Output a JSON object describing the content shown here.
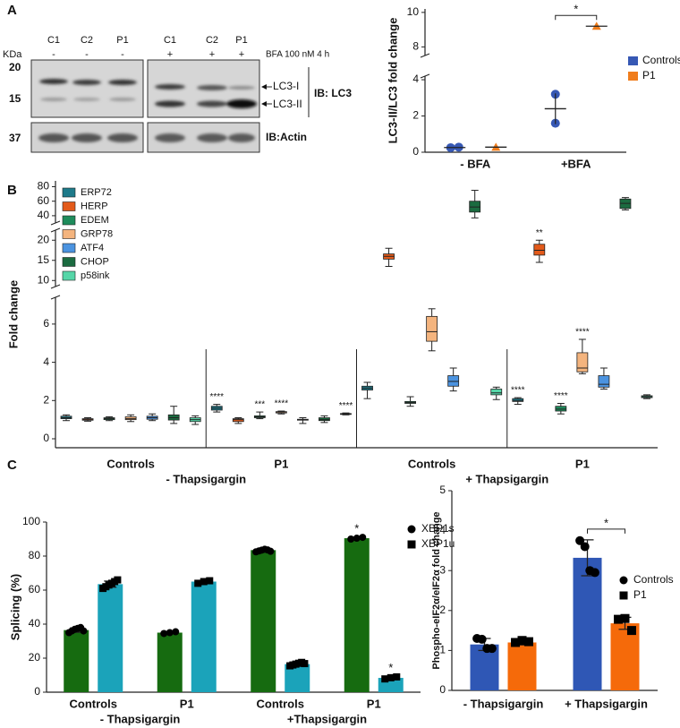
{
  "panel_labels": [
    "A",
    "B",
    "C"
  ],
  "blot": {
    "kda_label": "KDa",
    "lanes": [
      "C1",
      "C2",
      "P1",
      "C1",
      "C2",
      "P1"
    ],
    "treatment": [
      "-",
      "-",
      "-",
      "+",
      "+",
      "+"
    ],
    "treatment_label": "BFA 100 nM 4 h",
    "markers": [
      20,
      15,
      37
    ],
    "bands": [
      "LC3-I",
      "LC3-II"
    ],
    "probes": [
      "IB: LC3",
      "IB:Actin"
    ]
  },
  "chart_data": [
    {
      "type": "dot",
      "ylabel": "LC3-II/LC3 fold change",
      "categories": [
        "- BFA",
        "+BFA"
      ],
      "ysegments": [
        {
          "lim": [
            0,
            4.2
          ],
          "ticks": [
            0,
            2,
            4
          ]
        },
        {
          "lim": [
            7.5,
            10.2
          ],
          "ticks": [
            8,
            10
          ]
        }
      ],
      "series": [
        {
          "name": "Controls",
          "color": "#3658b4",
          "marker": "circle",
          "points": [
            [
              0.25,
              0.28
            ],
            [
              3.2,
              1.6
            ]
          ],
          "means": [
            0.26,
            2.4
          ],
          "errors": [
            null,
            0.85
          ]
        },
        {
          "name": "P1",
          "color": "#f07d1c",
          "marker": "triangle",
          "points": [
            [
              0.28
            ],
            [
              9.2
            ]
          ],
          "means": [
            0.28,
            9.2
          ]
        }
      ],
      "significance": [
        {
          "label": "*",
          "category": 1
        }
      ]
    },
    {
      "type": "box",
      "ylabel": "Fold change",
      "categories": [
        "Controls",
        "P1",
        "Controls",
        "P1"
      ],
      "group_labels": [
        "- Thapsigargin",
        "+ Thapsigargin"
      ],
      "dividers": true,
      "ysegments": [
        {
          "lim": [
            0,
            7.4
          ],
          "ticks": [
            0,
            2,
            4,
            6
          ]
        },
        {
          "lim": [
            8.5,
            22.5
          ],
          "ticks": [
            10,
            15,
            20
          ]
        },
        {
          "lim": [
            30,
            88
          ],
          "ticks": [
            40,
            60,
            80
          ]
        }
      ],
      "series": [
        {
          "name": "ERP72",
          "color": "#1e7a8a",
          "boxes": [
            [
              0.95,
              1.05,
              1.1,
              1.18,
              1.25
            ],
            [
              1.4,
              1.5,
              1.6,
              1.7,
              1.8
            ],
            [
              2.1,
              2.55,
              2.65,
              2.75,
              2.95
            ],
            [
              1.8,
              1.95,
              2.0,
              2.1,
              2.15
            ]
          ],
          "stars": [
            null,
            "****",
            null,
            "****"
          ]
        },
        {
          "name": "HERP",
          "color": "#e35a1a",
          "boxes": [
            [
              0.92,
              0.97,
              1.0,
              1.05,
              1.1
            ],
            [
              0.8,
              0.9,
              1.0,
              1.05,
              1.1
            ],
            [
              13.5,
              15.3,
              16,
              16.6,
              18
            ],
            [
              14.5,
              16.3,
              17.5,
              19,
              20
            ]
          ],
          "stars": [
            null,
            null,
            null,
            "**"
          ]
        },
        {
          "name": "EDEM",
          "color": "#1e8c5c",
          "boxes": [
            [
              0.95,
              1.0,
              1.05,
              1.1,
              1.15
            ],
            [
              1.05,
              1.1,
              1.15,
              1.2,
              1.4
            ],
            [
              1.7,
              1.85,
              1.9,
              1.95,
              2.2
            ],
            [
              1.3,
              1.45,
              1.55,
              1.7,
              1.85
            ]
          ],
          "stars": [
            null,
            "***",
            null,
            "****"
          ]
        },
        {
          "name": "GRP78",
          "color": "#f4b47e",
          "boxes": [
            [
              0.9,
              1.0,
              1.05,
              1.15,
              1.25
            ],
            [
              1.3,
              1.35,
              1.4,
              1.42,
              1.45
            ],
            [
              4.6,
              5.1,
              5.6,
              6.4,
              6.8
            ],
            [
              3.4,
              3.5,
              3.7,
              4.5,
              5.2
            ]
          ],
          "stars": [
            null,
            "****",
            null,
            "****"
          ]
        },
        {
          "name": "ATF4",
          "color": "#4b93e0",
          "boxes": [
            [
              0.95,
              1.02,
              1.1,
              1.18,
              1.3
            ],
            [
              0.8,
              0.98,
              1.0,
              1.02,
              1.1
            ],
            [
              2.5,
              2.75,
              3.0,
              3.3,
              3.7
            ],
            [
              2.6,
              2.7,
              2.85,
              3.3,
              3.7
            ]
          ]
        },
        {
          "name": "CHOP",
          "color": "#1b6b40",
          "boxes": [
            [
              0.8,
              0.98,
              1.1,
              1.25,
              1.7
            ],
            [
              0.85,
              0.95,
              1.0,
              1.1,
              1.2
            ],
            [
              37,
              45,
              52,
              60,
              75
            ],
            [
              48,
              50,
              57,
              63,
              65
            ]
          ]
        },
        {
          "name": "p58ink",
          "color": "#56d6a8",
          "boxes": [
            [
              0.75,
              0.9,
              1.0,
              1.1,
              1.2
            ],
            [
              1.25,
              1.28,
              1.3,
              1.32,
              1.35
            ],
            [
              2.05,
              2.3,
              2.4,
              2.6,
              2.7
            ],
            [
              2.1,
              2.15,
              2.2,
              2.25,
              2.3
            ]
          ],
          "stars": [
            null,
            "****",
            null,
            null
          ]
        }
      ]
    },
    {
      "type": "bar",
      "ylabel": "Splicing (%)",
      "categories": [
        "Controls",
        "P1",
        "Controls",
        "P1"
      ],
      "group_labels": [
        "- Thapsigargin",
        "+Thapsigargin"
      ],
      "ylim": [
        0,
        100
      ],
      "yticks": [
        0,
        20,
        40,
        60,
        80,
        100
      ],
      "point_color": "#000000",
      "series": [
        {
          "name": "XBP1s",
          "color": "#166b10",
          "marker": "circle",
          "values": [
            36.5,
            35,
            83.5,
            90.5
          ],
          "errors": [
            1.3,
            0.5,
            0.6,
            0.5
          ],
          "points": [
            [
              35,
              36,
              37,
              37.5,
              38,
              36
            ],
            [
              34.5,
              35,
              35.5
            ],
            [
              82.5,
              83,
              83.5,
              84,
              83.6,
              82.8
            ],
            [
              90,
              90.5,
              91
            ]
          ],
          "stars": [
            null,
            null,
            null,
            "*"
          ]
        },
        {
          "name": "XBP1u",
          "color": "#1ba3ba",
          "marker": "square",
          "values": [
            63.5,
            65,
            16.5,
            8.4
          ],
          "errors": [
            1.8,
            0.7,
            0.8,
            0.7
          ],
          "points": [
            [
              61,
              62,
              63,
              64,
              65,
              66
            ],
            [
              64,
              65,
              65.5
            ],
            [
              15.5,
              16,
              16.5,
              17,
              17.5,
              16.8
            ],
            [
              7.8,
              8.5,
              9
            ]
          ],
          "stars": [
            null,
            null,
            null,
            "*"
          ]
        }
      ]
    },
    {
      "type": "bar",
      "ylabel": "Phospho-eIF2α/eIF2α fold change",
      "categories": [
        "- Thapsigargin",
        "+ Thapsigargin"
      ],
      "ylim": [
        0,
        5
      ],
      "yticks": [
        0,
        1,
        2,
        3,
        4,
        5
      ],
      "point_color": "#000000",
      "series": [
        {
          "name": "Controls",
          "color": "#2f57b5",
          "marker": "circle",
          "values": [
            1.15,
            3.32
          ],
          "errors": [
            0.15,
            0.45
          ],
          "points": [
            [
              1.3,
              1.28,
              1.05,
              1.05
            ],
            [
              3.75,
              3.6,
              3.0,
              2.95
            ]
          ]
        },
        {
          "name": "P1",
          "color": "#f56a0a",
          "marker": "square",
          "values": [
            1.2,
            1.68
          ],
          "errors": [
            0.06,
            0.15
          ],
          "points": [
            [
              1.2,
              1.25,
              1.22
            ],
            [
              1.78,
              1.8,
              1.5
            ]
          ]
        }
      ],
      "significance": [
        {
          "label": "*",
          "category": 1
        }
      ]
    }
  ]
}
